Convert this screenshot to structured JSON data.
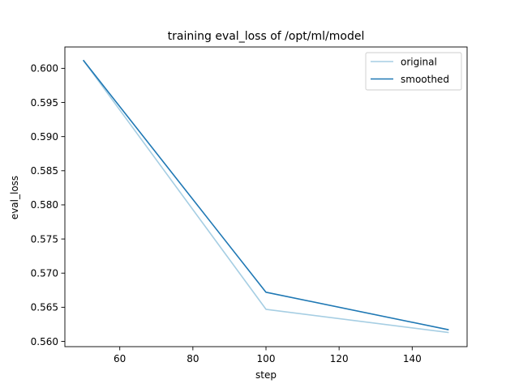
{
  "chart_data": {
    "type": "line",
    "title": "training eval_loss of /opt/ml/model",
    "xlabel": "step",
    "ylabel": "eval_loss",
    "xlim": [
      44.98,
      155.02
    ],
    "ylim": [
      0.55923,
      0.60313
    ],
    "xticks": [
      60,
      80,
      100,
      120,
      140
    ],
    "yticks": [
      0.56,
      0.565,
      0.57,
      0.575,
      0.58,
      0.585,
      0.59,
      0.595,
      0.6
    ],
    "xtick_labels": [
      "60",
      "80",
      "100",
      "120",
      "140"
    ],
    "ytick_labels": [
      "0.560",
      "0.565",
      "0.570",
      "0.575",
      "0.580",
      "0.585",
      "0.590",
      "0.595",
      "0.600"
    ],
    "grid": false,
    "legend_position": "top-right",
    "series": [
      {
        "name": "original",
        "color": "#a6cee3",
        "x": [
          50,
          100,
          150
        ],
        "y": [
          0.6012,
          0.5647,
          0.5613
        ]
      },
      {
        "name": "smoothed",
        "color": "#1f78b4",
        "x": [
          50,
          100,
          150
        ],
        "y": [
          0.6012,
          0.5672,
          0.5617
        ]
      }
    ]
  }
}
